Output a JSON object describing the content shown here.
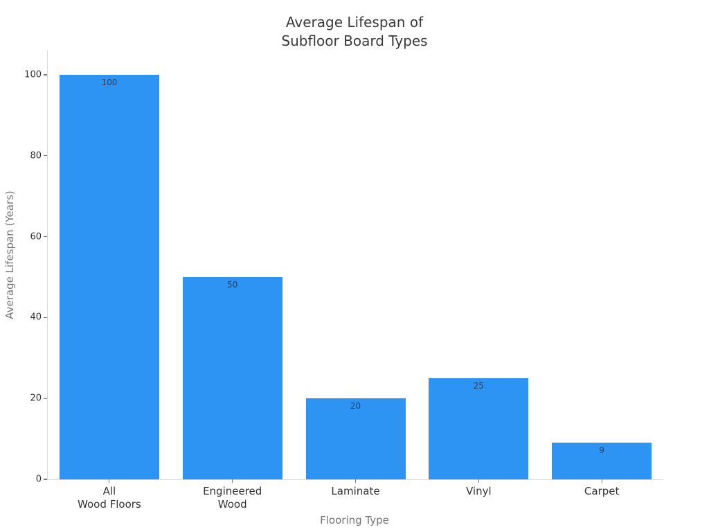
{
  "chart_data": {
    "type": "bar",
    "title": "Average Lifespan of\nSubfloor Board Types",
    "categories": [
      "All\nWood Floors",
      "Engineered\nWood",
      "Laminate",
      "Vinyl",
      "Carpet"
    ],
    "values": [
      100,
      50,
      20,
      25,
      9
    ],
    "bar_labels": [
      "100",
      "50",
      "20",
      "25",
      "9"
    ],
    "xlabel": "Flooring Type",
    "ylabel": "Average Lifespan (Years)",
    "yticks": [
      0,
      20,
      40,
      60,
      80,
      100
    ],
    "ylim": [
      0,
      106
    ],
    "grid": false,
    "legend_visible": false,
    "bar_label_position": "inside-top",
    "colors": {
      "bar": "#2e94f3",
      "bar_label": "#2a3f5f",
      "axis_line": "#d9d9d9",
      "tick_mark": "#777777",
      "tick_label": "#333333",
      "axis_title": "#757575",
      "title": "#3a3a3a",
      "background": "#ffffff"
    }
  }
}
